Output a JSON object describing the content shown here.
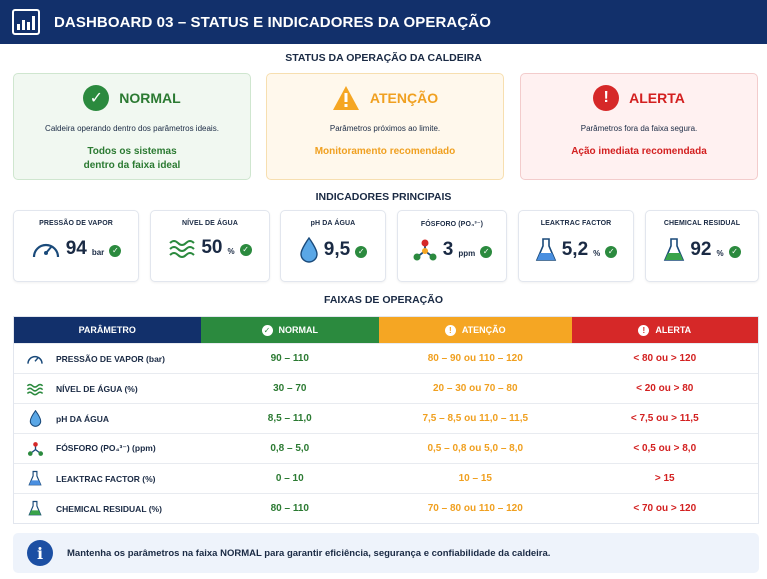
{
  "header": {
    "title": "DASHBOARD 03 – STATUS E INDICADORES DA OPERAÇÃO",
    "icon": "bar-chart-icon"
  },
  "status_section": {
    "title": "STATUS DA OPERAÇÃO DA CALDEIRA",
    "cards": [
      {
        "label": "NORMAL",
        "icon": "check-icon",
        "color": "#2b8a3e",
        "description": "Caldeira operando dentro dos parâmetros ideais.",
        "note_line1": "Todos os sistemas",
        "note_line2": "dentro da faixa ideal"
      },
      {
        "label": "ATENÇÃO",
        "icon": "warning-icon",
        "color": "#f5a623",
        "description": "Parâmetros próximos ao limite.",
        "note_line1": "Monitoramento recomendado",
        "note_line2": ""
      },
      {
        "label": "ALERTA",
        "icon": "alert-icon",
        "color": "#d62828",
        "description": "Parâmetros fora da faixa segura.",
        "note_line1": "Ação imediata recomendada",
        "note_line2": ""
      }
    ]
  },
  "indicators_section": {
    "title": "INDICADORES PRINCIPAIS",
    "items": [
      {
        "label": "PRESSÃO DE VAPOR",
        "value": "94",
        "unit": "bar",
        "icon": "gauge-icon"
      },
      {
        "label": "NÍVEL DE ÁGUA",
        "value": "50",
        "unit": "%",
        "icon": "water-level-icon"
      },
      {
        "label": "pH DA ÁGUA",
        "value": "9,5",
        "unit": "",
        "icon": "water-drop-icon"
      },
      {
        "label": "FÓSFORO (PO₄³⁻)",
        "value": "3",
        "unit": "ppm",
        "icon": "molecule-icon"
      },
      {
        "label": "LEAKTRAC FACTOR",
        "value": "5,2",
        "unit": "%",
        "icon": "flask-icon"
      },
      {
        "label": "CHEMICAL RESIDUAL",
        "value": "92",
        "unit": "%",
        "icon": "flask-icon"
      }
    ]
  },
  "ranges_section": {
    "title": "FAIXAS DE OPERAÇÃO",
    "headers": {
      "param": "PARÂMETRO",
      "normal": "NORMAL",
      "attention": "ATENÇÃO",
      "alert": "ALERTA"
    },
    "rows": [
      {
        "param": "PRESSÃO DE VAPOR (bar)",
        "icon": "gauge-icon",
        "normal": "90 – 110",
        "attention": "80 – 90 ou 110 – 120",
        "alert": "< 80 ou > 120"
      },
      {
        "param": "NÍVEL DE ÁGUA (%)",
        "icon": "water-level-icon",
        "normal": "30 – 70",
        "attention": "20 – 30 ou 70 – 80",
        "alert": "< 20 ou > 80"
      },
      {
        "param": "pH DA ÁGUA",
        "icon": "water-drop-icon",
        "normal": "8,5 – 11,0",
        "attention": "7,5 – 8,5 ou 11,0 – 11,5",
        "alert": "< 7,5 ou > 11,5"
      },
      {
        "param": "FÓSFORO (PO₄³⁻) (ppm)",
        "icon": "molecule-icon",
        "normal": "0,8 – 5,0",
        "attention": "0,5 – 0,8 ou 5,0 – 8,0",
        "alert": "< 0,5 ou > 8,0"
      },
      {
        "param": "LEAKTRAC FACTOR (%)",
        "icon": "flask-icon",
        "normal": "0 – 10",
        "attention": "10 – 15",
        "alert": "> 15"
      },
      {
        "param": "CHEMICAL RESIDUAL (%)",
        "icon": "flask-icon",
        "normal": "80 – 110",
        "attention": "70 – 80 ou 110 – 120",
        "alert": "< 70 ou > 120"
      }
    ]
  },
  "footer": {
    "text": "Mantenha os parâmetros na faixa NORMAL para garantir eficiência, segurança e confiabilidade da caldeira.",
    "icon": "info-icon"
  }
}
